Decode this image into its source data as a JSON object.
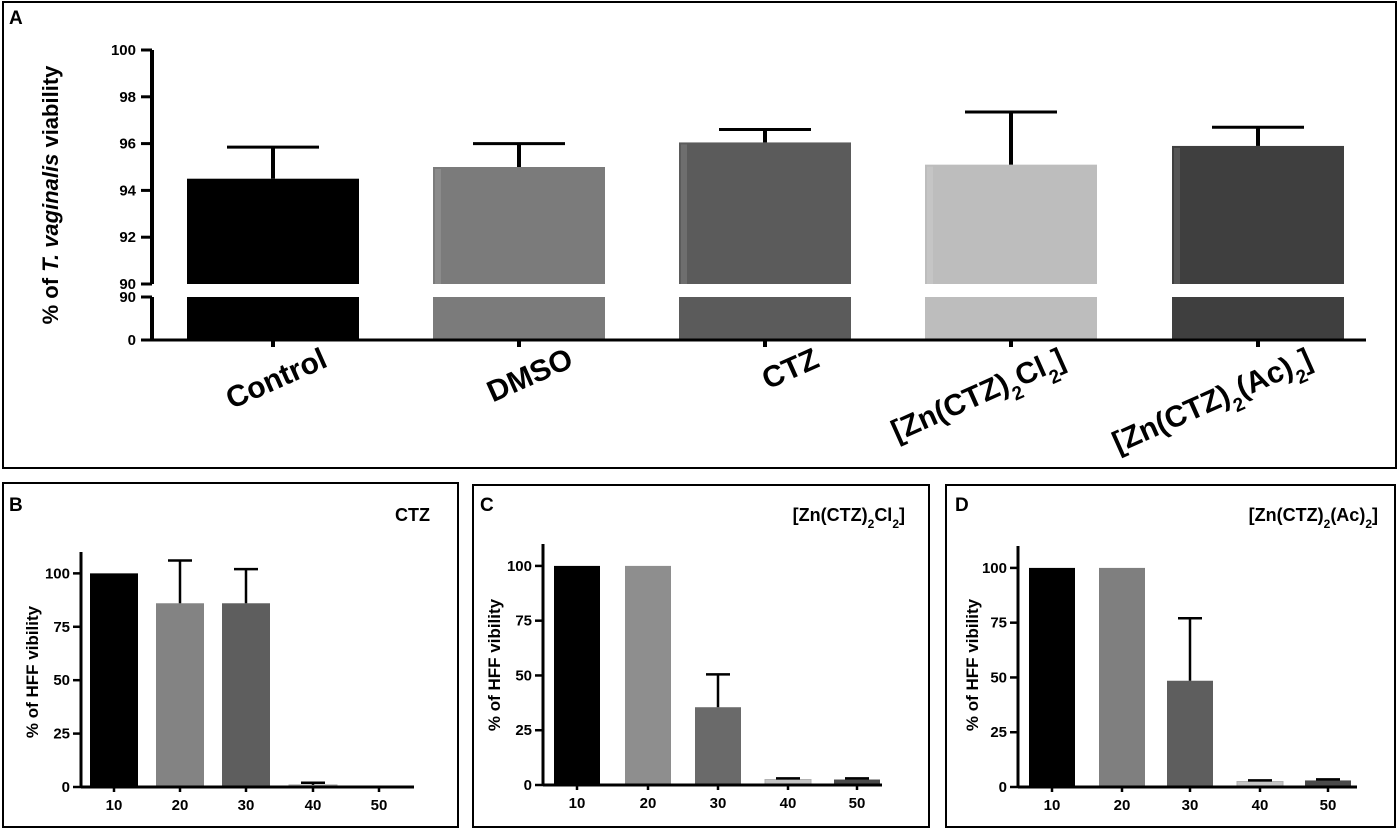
{
  "chart_data": [
    {
      "panel": "A",
      "type": "bar",
      "ylabel_parts": [
        "% of ",
        "T. vaginalis",
        " viability"
      ],
      "categories": [
        "Control",
        "DMSO",
        "CTZ",
        "[Zn(CTZ)2Cl2]",
        "[Zn(CTZ)2(Ac)2]"
      ],
      "category_labels": [
        [
          {
            "t": "Control"
          }
        ],
        [
          {
            "t": "DMSO"
          }
        ],
        [
          {
            "t": "CTZ"
          }
        ],
        [
          {
            "t": "[Zn(CTZ)"
          },
          {
            "t": "2",
            "sub": true
          },
          {
            "t": "Cl"
          },
          {
            "t": "2",
            "sub": true
          },
          {
            "t": "]"
          }
        ],
        [
          {
            "t": "[Zn(CTZ)"
          },
          {
            "t": "2",
            "sub": true
          },
          {
            "t": "(Ac)"
          },
          {
            "t": "2",
            "sub": true
          },
          {
            "t": "]"
          }
        ]
      ],
      "values": [
        94.5,
        95.0,
        96.05,
        95.1,
        95.9
      ],
      "errors": [
        1.35,
        1.0,
        0.55,
        2.25,
        0.8
      ],
      "colors": [
        "#000000",
        "#7b7b7b",
        "#5b5b5b",
        "#bdbdbd",
        "#3f3f3f"
      ],
      "yticks_upper": [
        "90",
        "92",
        "94",
        "96",
        "98",
        "100"
      ],
      "yticks_lower": [
        "0",
        "90"
      ],
      "ylim_upper": [
        90,
        100
      ],
      "ylim_lower": [
        0,
        90
      ],
      "axis_break": true
    },
    {
      "panel": "B",
      "type": "bar",
      "title_parts": [
        {
          "t": "CTZ"
        }
      ],
      "ylabel": "% of HFF vibility",
      "categories": [
        "10",
        "20",
        "30",
        "40",
        "50"
      ],
      "values": [
        100,
        86,
        86,
        1,
        0
      ],
      "errors": [
        0,
        20,
        16,
        1,
        0
      ],
      "colors": [
        "#000000",
        "#838383",
        "#5e5e5e",
        "#c4c4c4",
        "#4a4a4a"
      ],
      "yticks": [
        "0",
        "25",
        "50",
        "75",
        "100"
      ],
      "ylim": [
        0,
        110
      ]
    },
    {
      "panel": "C",
      "type": "bar",
      "title_parts": [
        {
          "t": "[Zn(CTZ)"
        },
        {
          "t": "2",
          "sub": true
        },
        {
          "t": "Cl"
        },
        {
          "t": "2",
          "sub": true
        },
        {
          "t": "]"
        }
      ],
      "ylabel": "% of HFF vibility",
      "categories": [
        "10",
        "20",
        "30",
        "40",
        "50"
      ],
      "values": [
        100,
        100,
        35.5,
        2.5,
        2.5
      ],
      "errors": [
        0,
        0,
        15,
        0.5,
        0.5
      ],
      "colors": [
        "#000000",
        "#8e8e8e",
        "#6a6a6a",
        "#c4c4c4",
        "#4a4a4a"
      ],
      "yticks": [
        "0",
        "25",
        "50",
        "75",
        "100"
      ],
      "ylim": [
        0,
        110
      ]
    },
    {
      "panel": "D",
      "type": "bar",
      "title_parts": [
        {
          "t": "[Zn(CTZ)"
        },
        {
          "t": "2",
          "sub": true
        },
        {
          "t": "(Ac)"
        },
        {
          "t": "2",
          "sub": true
        },
        {
          "t": "]"
        }
      ],
      "ylabel": "% of HFF vibility",
      "categories": [
        "10",
        "20",
        "30",
        "40",
        "50"
      ],
      "values": [
        100,
        100,
        48.5,
        2.5,
        3.0
      ],
      "errors": [
        0,
        0,
        28.5,
        0.5,
        0.5
      ],
      "colors": [
        "#000000",
        "#7f7f7f",
        "#5e5e5e",
        "#c4c4c4",
        "#4a4a4a"
      ],
      "yticks": [
        "0",
        "25",
        "50",
        "75",
        "100"
      ],
      "ylim": [
        0,
        110
      ]
    }
  ]
}
